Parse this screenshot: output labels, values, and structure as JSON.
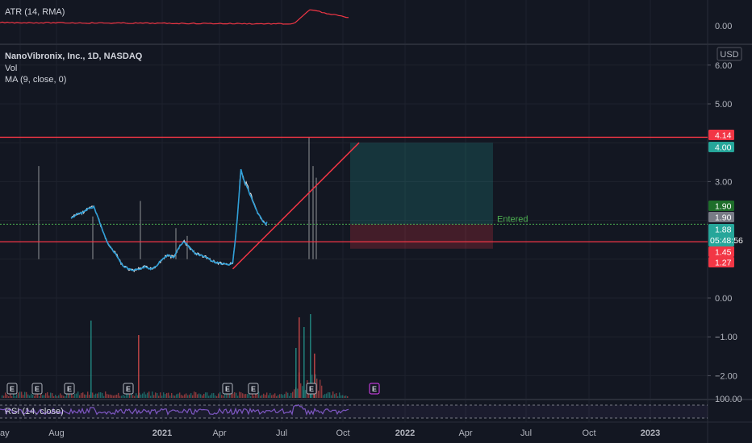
{
  "chart_data": {
    "type": "line",
    "title": "NanoVibronix, Inc., 1D, NASDAQ",
    "currency": "USD",
    "indicators": [
      "Vol",
      "MA (9, close, 0)"
    ],
    "atr": {
      "label": "ATR (14, RMA)",
      "tick": "0.00"
    },
    "rsi": {
      "label": "RSI (14, close)",
      "tick": "100.00"
    },
    "y_ticks": [
      6.0,
      5.0,
      3.0,
      0.0,
      -1.0,
      -2.0
    ],
    "y_tick_labels": [
      "6.00",
      "5.00",
      "3.00",
      "0.00",
      "−1.00",
      "−2.00"
    ],
    "x_ticks": [
      "ay",
      "Aug",
      "2021",
      "Apr",
      "Jul",
      "Oct",
      "2022",
      "Apr",
      "Jul",
      "Oct",
      "2023"
    ],
    "price_tags": [
      {
        "value": 4.14,
        "label": "4.14",
        "color": "#f23645"
      },
      {
        "value": 4.0,
        "label": "4.00",
        "color": "#26a69a"
      },
      {
        "value": 1.9,
        "label": "1.90",
        "color": "#1e6e2a"
      },
      {
        "value": 1.9,
        "label": "1.90",
        "color": "#787b86"
      },
      {
        "value": 1.88,
        "label": "1.88",
        "sub": "05:48:56",
        "color": "#26a69a"
      },
      {
        "value": 1.45,
        "label": "1.45",
        "color": "#f23645"
      },
      {
        "value": 1.27,
        "label": "1.27",
        "color": "#f23645"
      }
    ],
    "horizontal_lines": [
      4.14,
      1.45
    ],
    "entry_line": 1.9,
    "entry_label": "Entered",
    "position": {
      "entry": 1.9,
      "target": 4.0,
      "stop": 1.27
    },
    "trend_line": {
      "from": [
        "2021-07-10",
        0.75
      ],
      "to": [
        "2022-06-15",
        4.0
      ]
    },
    "earnings_label": "E",
    "price_series": {
      "dates": [
        "2020-05-01",
        "2020-05-15",
        "2020-06-01",
        "2020-06-15",
        "2020-07-01",
        "2020-07-15",
        "2020-08-01",
        "2020-08-15",
        "2020-09-01",
        "2020-09-15",
        "2020-10-01",
        "2020-10-15",
        "2020-11-01",
        "2020-11-15",
        "2020-12-01",
        "2020-12-15",
        "2021-01-01",
        "2021-01-15",
        "2021-02-01",
        "2021-02-15",
        "2021-03-01",
        "2021-03-15",
        "2021-04-01",
        "2021-04-15",
        "2021-05-01",
        "2021-05-15",
        "2021-06-01",
        "2021-06-15",
        "2021-07-01",
        "2021-07-10",
        "2021-07-20",
        "2021-08-01",
        "2021-08-10",
        "2021-08-20",
        "2021-09-01",
        "2021-09-15",
        "2021-10-01",
        "2021-10-10"
      ],
      "values": [
        2.05,
        2.15,
        2.2,
        2.3,
        2.35,
        2.0,
        1.55,
        1.3,
        1.1,
        0.85,
        0.75,
        0.7,
        0.75,
        0.8,
        0.75,
        0.82,
        1.0,
        1.1,
        1.05,
        1.3,
        1.45,
        1.3,
        1.15,
        1.1,
        1.05,
        0.95,
        0.9,
        0.88,
        0.85,
        0.9,
        1.8,
        3.3,
        3.0,
        2.8,
        2.5,
        2.2,
        1.95,
        1.88
      ]
    }
  }
}
